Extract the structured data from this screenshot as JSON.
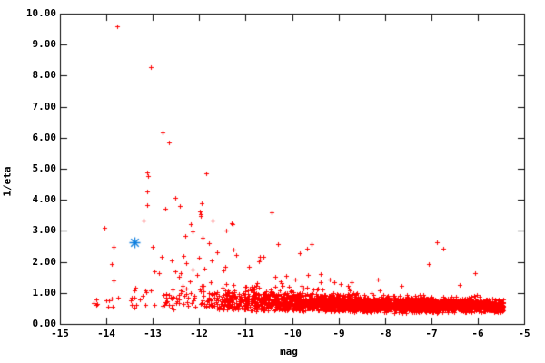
{
  "figure": {
    "background": "#ffffff",
    "border_color": "#000000"
  },
  "chart_data": {
    "type": "scatter",
    "title": "",
    "xlabel": "mag",
    "ylabel": "1/eta",
    "xlim": [
      -15,
      -5
    ],
    "ylim": [
      0,
      10
    ],
    "grid": false,
    "legend": "none",
    "tick_style": "inward-mirrored",
    "x_tick_values": [
      -15,
      -14,
      -13,
      -12,
      -11,
      -10,
      -9,
      -8,
      -7,
      -6,
      -5
    ],
    "x_tick_labels": [
      "-15",
      "-14",
      "-13",
      "-12",
      "-11",
      "-10",
      "-9",
      "-8",
      "-7",
      "-6",
      "-5"
    ],
    "y_tick_values": [
      0,
      1,
      2,
      3,
      4,
      5,
      6,
      7,
      8,
      9,
      10
    ],
    "y_tick_labels": [
      "0.00",
      "1.00",
      "2.00",
      "3.00",
      "4.00",
      "5.00",
      "6.00",
      "7.00",
      "8.00",
      "9.00",
      "10.00"
    ],
    "series": [
      {
        "name": "red-scatter",
        "marker": "plus",
        "color": "#ff0000",
        "size": 5,
        "points": [
          [
            -13.77,
            9.6
          ],
          [
            -13.04,
            8.27
          ],
          [
            -12.79,
            6.17
          ],
          [
            -12.65,
            5.85
          ],
          [
            -13.12,
            4.88
          ],
          [
            -13.1,
            4.78
          ],
          [
            -11.85,
            4.85
          ],
          [
            -13.12,
            4.27
          ],
          [
            -12.51,
            4.06
          ],
          [
            -13.12,
            3.83
          ],
          [
            -12.42,
            3.8
          ],
          [
            -12.73,
            3.71
          ],
          [
            -11.95,
            3.89
          ],
          [
            -11.99,
            3.63
          ],
          [
            -11.97,
            3.55
          ],
          [
            -11.97,
            3.48
          ],
          [
            -11.72,
            3.33
          ],
          [
            -13.19,
            3.33
          ],
          [
            -14.04,
            3.1
          ],
          [
            -12.18,
            3.22
          ],
          [
            -11.29,
            3.22
          ],
          [
            -11.3,
            3.25
          ],
          [
            -11.41,
            3.02
          ],
          [
            -10.44,
            3.6
          ],
          [
            -10.3,
            2.58
          ],
          [
            -9.57,
            2.58
          ],
          [
            -9.67,
            2.43
          ],
          [
            -13.84,
            2.49
          ],
          [
            -13.0,
            2.49
          ],
          [
            -12.3,
            2.84
          ],
          [
            -12.14,
            2.98
          ],
          [
            -11.93,
            2.78
          ],
          [
            -11.26,
            2.4
          ],
          [
            -12.8,
            2.16
          ],
          [
            -13.88,
            1.93
          ],
          [
            -12.28,
            1.96
          ],
          [
            -11.74,
            2.05
          ],
          [
            -11.44,
            1.84
          ],
          [
            -13.84,
            1.4
          ],
          [
            -13.16,
            1.08
          ],
          [
            -12.96,
            1.7
          ],
          [
            -12.86,
            1.64
          ],
          [
            -12.39,
            1.64
          ],
          [
            -12.04,
            1.58
          ],
          [
            -12.43,
            1.52
          ],
          [
            -10.62,
            2.17
          ],
          [
            -10.72,
            2.02
          ],
          [
            -11.48,
            1.73
          ],
          [
            -10.13,
            1.55
          ],
          [
            -9.09,
            1.35
          ],
          [
            -8.72,
            1.35
          ],
          [
            -11.21,
            2.23
          ],
          [
            -14.28,
            0.67
          ],
          [
            -14.22,
            0.61
          ]
        ],
        "cloud": {
          "seed": 1337,
          "segments": [
            {
              "x0": -14.35,
              "x1": -13.6,
              "count": 8,
              "yc": 0.7,
              "ys": 0.15,
              "ymin": 0.5,
              "ymax": 1.0
            },
            {
              "x0": -13.6,
              "x1": -12.8,
              "count": 14,
              "yc": 0.8,
              "ys": 0.2,
              "ymin": 0.5,
              "ymax": 1.2
            },
            {
              "x0": -12.8,
              "x1": -12.0,
              "count": 40,
              "yc": 0.8,
              "ys": 0.22,
              "ymin": 0.45,
              "ymax": 1.35
            },
            {
              "x0": -12.0,
              "x1": -11.4,
              "count": 70,
              "yc": 0.78,
              "ys": 0.22,
              "ymin": 0.45,
              "ymax": 1.4
            },
            {
              "x0": -11.4,
              "x1": -10.8,
              "count": 130,
              "yc": 0.75,
              "ys": 0.2,
              "ymin": 0.42,
              "ymax": 1.4
            },
            {
              "x0": -10.8,
              "x1": -10.2,
              "count": 170,
              "yc": 0.72,
              "ys": 0.18,
              "ymin": 0.42,
              "ymax": 1.3
            },
            {
              "x0": -10.2,
              "x1": -9.6,
              "count": 220,
              "yc": 0.7,
              "ys": 0.16,
              "ymin": 0.4,
              "ymax": 1.25
            },
            {
              "x0": -9.6,
              "x1": -9.0,
              "count": 260,
              "yc": 0.67,
              "ys": 0.15,
              "ymin": 0.4,
              "ymax": 1.2
            },
            {
              "x0": -9.0,
              "x1": -8.4,
              "count": 300,
              "yc": 0.65,
              "ys": 0.14,
              "ymin": 0.38,
              "ymax": 1.1
            },
            {
              "x0": -8.4,
              "x1": -7.8,
              "count": 340,
              "yc": 0.64,
              "ys": 0.13,
              "ymin": 0.38,
              "ymax": 1.05
            },
            {
              "x0": -7.8,
              "x1": -7.2,
              "count": 380,
              "yc": 0.62,
              "ys": 0.12,
              "ymin": 0.36,
              "ymax": 1.0
            },
            {
              "x0": -7.2,
              "x1": -6.6,
              "count": 400,
              "yc": 0.61,
              "ys": 0.11,
              "ymin": 0.36,
              "ymax": 0.95
            },
            {
              "x0": -6.6,
              "x1": -6.0,
              "count": 420,
              "yc": 0.6,
              "ys": 0.1,
              "ymin": 0.35,
              "ymax": 0.95
            },
            {
              "x0": -6.0,
              "x1": -5.45,
              "count": 380,
              "yc": 0.59,
              "ys": 0.1,
              "ymin": 0.34,
              "ymax": 0.92
            }
          ],
          "sprinkle": {
            "count": 55,
            "x_min": -12.6,
            "x_max": -6.0,
            "x_bias": 1.35,
            "y_base": 1.05,
            "y_scale": 0.38,
            "y_max": 2.95
          }
        }
      },
      {
        "name": "blue-highlight",
        "marker": "asterisk",
        "color": "#0d7ede",
        "size": 6,
        "points": [
          [
            -13.4,
            2.64
          ]
        ]
      }
    ]
  }
}
